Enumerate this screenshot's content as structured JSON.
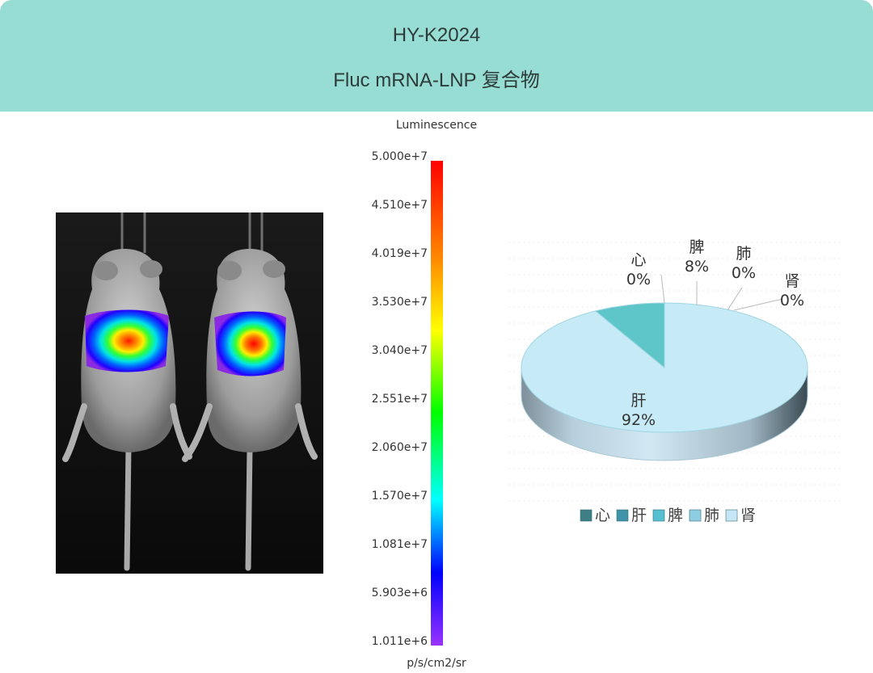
{
  "header": {
    "line1": "HY-K2024",
    "line2": "Fluc mRNA-LNP 复合物"
  },
  "luminescence_legend": {
    "title": "Luminescence",
    "unit": "p/s/cm2/sr",
    "ticks": [
      "5.000e+7",
      "4.510e+7",
      "4.019e+7",
      "3.530e+7",
      "3.040e+7",
      "2.551e+7",
      "2.060e+7",
      "1.570e+7",
      "1.081e+7",
      "5.903e+6",
      "1.011e+6"
    ]
  },
  "chart_data": {
    "type": "pie",
    "labels": [
      "心",
      "肝",
      "脾",
      "肺",
      "肾"
    ],
    "values": [
      0,
      92,
      8,
      0,
      0
    ],
    "data_labels": [
      "0%",
      "92%",
      "8%",
      "0%",
      "0%"
    ],
    "colors": [
      "#3e8c92",
      "#c7ebf6",
      "#5ec6c9",
      "#8ed0e0",
      "#c4e6f3"
    ],
    "legend": [
      "心",
      "肝",
      "脾",
      "肺",
      "肾"
    ],
    "legend_position": "bottom"
  }
}
